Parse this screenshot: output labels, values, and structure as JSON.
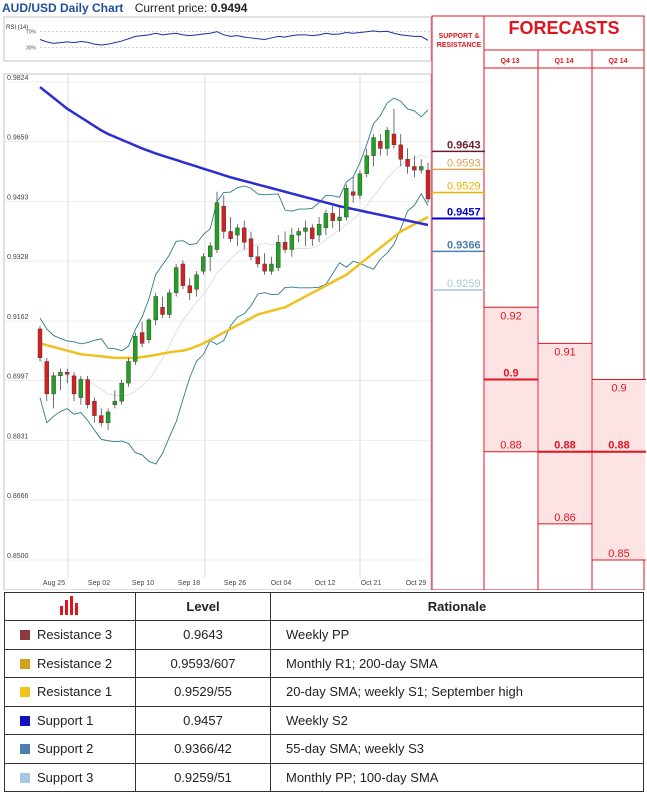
{
  "header": {
    "title": "AUD/USD Daily Chart",
    "price_label": "Current price:",
    "price_value": "0.9494"
  },
  "rsi": {
    "label": "RSI (14)",
    "upper": "70%",
    "lower": "30%"
  },
  "price_axis": [
    "0.9824",
    "0.9659",
    "0.9493",
    "0.9328",
    "0.9162",
    "0.8997",
    "0.8831",
    "0.8666",
    "0.8500"
  ],
  "date_axis": [
    "Aug 25",
    "Sep 02",
    "Sep 10",
    "Sep 18",
    "Sep 26",
    "Oct 04",
    "Oct 12",
    "Oct 21",
    "Oct 29"
  ],
  "support_resistance": {
    "header": "SUPPORT & RESISTANCE",
    "levels": [
      {
        "value": "0.9643",
        "color": "#6b1c2c"
      },
      {
        "value": "0.9593",
        "color": "#d9a650"
      },
      {
        "value": "0.9529",
        "color": "#e8b400"
      },
      {
        "value": "0.9457",
        "color": "#0000c8"
      },
      {
        "value": "0.9366",
        "color": "#4a7fb0"
      },
      {
        "value": "0.9259",
        "color": "#a8c8dc"
      }
    ]
  },
  "forecasts": {
    "title": "FORECASTS",
    "quarters": [
      {
        "label": "Q4 13",
        "high": "0.92",
        "mid": "0.9",
        "low": "0.88"
      },
      {
        "label": "Q1 14",
        "high": "0.91",
        "mid": "0.88",
        "low": "0.86"
      },
      {
        "label": "Q2 14",
        "high": "0.9",
        "mid": "0.88",
        "low": "0.85"
      }
    ]
  },
  "table": {
    "col_level": "Level",
    "col_rationale": "Rationale",
    "rows": [
      {
        "name": "Resistance 3",
        "level": "0.9643",
        "rationale": "Weekly PP",
        "color": "#8b3a3a"
      },
      {
        "name": "Resistance 2",
        "level": "0.9593/607",
        "rationale": "Monthly R1; 200-day SMA",
        "color": "#d4a020"
      },
      {
        "name": "Resistance 1",
        "level": "0.9529/55",
        "rationale": "20-day SMA; weekly S1; September high",
        "color": "#f0c420"
      },
      {
        "name": "Support 1",
        "level": "0.9457",
        "rationale": "Weekly S2",
        "color": "#1010c0"
      },
      {
        "name": "Support 2",
        "level": "0.9366/42",
        "rationale": "55-day SMA; weekly S3",
        "color": "#4a7fb0"
      },
      {
        "name": "Support 3",
        "level": "0.9259/51",
        "rationale": "Monthly PP; 100-day SMA",
        "color": "#a8c8e0"
      }
    ]
  },
  "chart_data": {
    "type": "candlestick",
    "title": "AUD/USD Daily Chart",
    "ylim": [
      0.85,
      0.9824
    ],
    "candles_ohlc": [
      [
        0.914,
        0.9148,
        0.905,
        0.906
      ],
      [
        0.905,
        0.906,
        0.894,
        0.896
      ],
      [
        0.896,
        0.902,
        0.892,
        0.901
      ],
      [
        0.901,
        0.903,
        0.897,
        0.902
      ],
      [
        0.902,
        0.903,
        0.899,
        0.9015
      ],
      [
        0.901,
        0.902,
        0.894,
        0.896
      ],
      [
        0.895,
        0.901,
        0.893,
        0.9
      ],
      [
        0.9,
        0.901,
        0.892,
        0.893
      ],
      [
        0.894,
        0.895,
        0.888,
        0.89
      ],
      [
        0.89,
        0.892,
        0.887,
        0.888
      ],
      [
        0.888,
        0.892,
        0.886,
        0.891
      ],
      [
        0.893,
        0.897,
        0.892,
        0.894
      ],
      [
        0.894,
        0.9,
        0.893,
        0.899
      ],
      [
        0.899,
        0.906,
        0.898,
        0.905
      ],
      [
        0.905,
        0.913,
        0.904,
        0.912
      ],
      [
        0.913,
        0.916,
        0.909,
        0.91
      ],
      [
        0.911,
        0.917,
        0.91,
        0.9165
      ],
      [
        0.9165,
        0.924,
        0.915,
        0.923
      ],
      [
        0.92,
        0.923,
        0.917,
        0.918
      ],
      [
        0.918,
        0.925,
        0.917,
        0.924
      ],
      [
        0.924,
        0.932,
        0.923,
        0.931
      ],
      [
        0.932,
        0.933,
        0.925,
        0.926
      ],
      [
        0.926,
        0.928,
        0.922,
        0.924
      ],
      [
        0.925,
        0.93,
        0.923,
        0.929
      ],
      [
        0.93,
        0.935,
        0.929,
        0.934
      ],
      [
        0.934,
        0.938,
        0.93,
        0.937
      ],
      [
        0.936,
        0.952,
        0.935,
        0.949
      ],
      [
        0.948,
        0.951,
        0.939,
        0.941
      ],
      [
        0.941,
        0.945,
        0.938,
        0.939
      ],
      [
        0.94,
        0.943,
        0.937,
        0.942
      ],
      [
        0.942,
        0.944,
        0.936,
        0.938
      ],
      [
        0.939,
        0.941,
        0.933,
        0.934
      ],
      [
        0.934,
        0.937,
        0.931,
        0.932
      ],
      [
        0.932,
        0.935,
        0.929,
        0.93
      ],
      [
        0.93,
        0.934,
        0.929,
        0.932
      ],
      [
        0.931,
        0.94,
        0.93,
        0.938
      ],
      [
        0.938,
        0.941,
        0.935,
        0.936
      ],
      [
        0.936,
        0.942,
        0.934,
        0.94
      ],
      [
        0.94,
        0.942,
        0.938,
        0.941
      ],
      [
        0.941,
        0.944,
        0.937,
        0.942
      ],
      [
        0.942,
        0.943,
        0.937,
        0.939
      ],
      [
        0.94,
        0.945,
        0.938,
        0.943
      ],
      [
        0.942,
        0.947,
        0.94,
        0.946
      ],
      [
        0.946,
        0.948,
        0.942,
        0.944
      ],
      [
        0.944,
        0.948,
        0.941,
        0.945
      ],
      [
        0.945,
        0.954,
        0.944,
        0.953
      ],
      [
        0.952,
        0.956,
        0.949,
        0.951
      ],
      [
        0.951,
        0.958,
        0.95,
        0.957
      ],
      [
        0.957,
        0.964,
        0.956,
        0.962
      ],
      [
        0.962,
        0.968,
        0.959,
        0.967
      ],
      [
        0.966,
        0.968,
        0.962,
        0.964
      ],
      [
        0.964,
        0.97,
        0.962,
        0.969
      ],
      [
        0.968,
        0.975,
        0.964,
        0.965
      ],
      [
        0.965,
        0.968,
        0.959,
        0.961
      ],
      [
        0.961,
        0.964,
        0.957,
        0.959
      ],
      [
        0.959,
        0.962,
        0.956,
        0.958
      ],
      [
        0.958,
        0.961,
        0.957,
        0.959
      ],
      [
        0.958,
        0.96,
        0.949,
        0.95
      ]
    ],
    "sma_yellow": [
      0.91,
      0.9095,
      0.909,
      0.9085,
      0.908,
      0.9075,
      0.907,
      0.9068,
      0.9066,
      0.9064,
      0.9062,
      0.906,
      0.906,
      0.906,
      0.906,
      0.9062,
      0.9065,
      0.9068,
      0.9072,
      0.9075,
      0.9078,
      0.908,
      0.9085,
      0.9092,
      0.91,
      0.911,
      0.912,
      0.913,
      0.914,
      0.915,
      0.916,
      0.917,
      0.918,
      0.9185,
      0.919,
      0.9195,
      0.92,
      0.921,
      0.922,
      0.923,
      0.924,
      0.925,
      0.926,
      0.927,
      0.928,
      0.929,
      0.9305,
      0.932,
      0.9335,
      0.935,
      0.9365,
      0.938,
      0.9395,
      0.941,
      0.942,
      0.943,
      0.944,
      0.945
    ],
    "sma_blue": [
      0.981,
      0.9795,
      0.978,
      0.9765,
      0.975,
      0.9738,
      0.9726,
      0.9714,
      0.9702,
      0.969,
      0.968,
      0.9672,
      0.9664,
      0.9656,
      0.9648,
      0.964,
      0.9633,
      0.9626,
      0.962,
      0.9614,
      0.9608,
      0.9602,
      0.9596,
      0.959,
      0.9584,
      0.9578,
      0.9572,
      0.9566,
      0.956,
      0.9555,
      0.955,
      0.9545,
      0.954,
      0.9535,
      0.953,
      0.9525,
      0.952,
      0.9515,
      0.951,
      0.9505,
      0.95,
      0.9495,
      0.949,
      0.9485,
      0.948,
      0.9476,
      0.9472,
      0.9468,
      0.9464,
      0.946,
      0.9456,
      0.9452,
      0.9448,
      0.9444,
      0.944,
      0.9436,
      0.9432,
      0.9428
    ],
    "rsi_values": [
      50,
      44,
      40,
      42,
      44,
      42,
      45,
      43,
      38,
      36,
      38,
      42,
      46,
      52,
      58,
      60,
      62,
      66,
      62,
      64,
      66,
      62,
      60,
      62,
      64,
      66,
      70,
      62,
      58,
      60,
      56,
      54,
      52,
      50,
      54,
      58,
      56,
      60,
      62,
      62,
      60,
      62,
      66,
      63,
      64,
      68,
      66,
      68,
      70,
      72,
      70,
      71,
      66,
      62,
      60,
      58,
      58,
      48
    ],
    "forecasts": {
      "Q4 13": {
        "high": 0.92,
        "mid": 0.9,
        "low": 0.88
      },
      "Q1 14": {
        "high": 0.91,
        "mid": 0.88,
        "low": 0.86
      },
      "Q2 14": {
        "high": 0.9,
        "mid": 0.88,
        "low": 0.85
      }
    }
  }
}
